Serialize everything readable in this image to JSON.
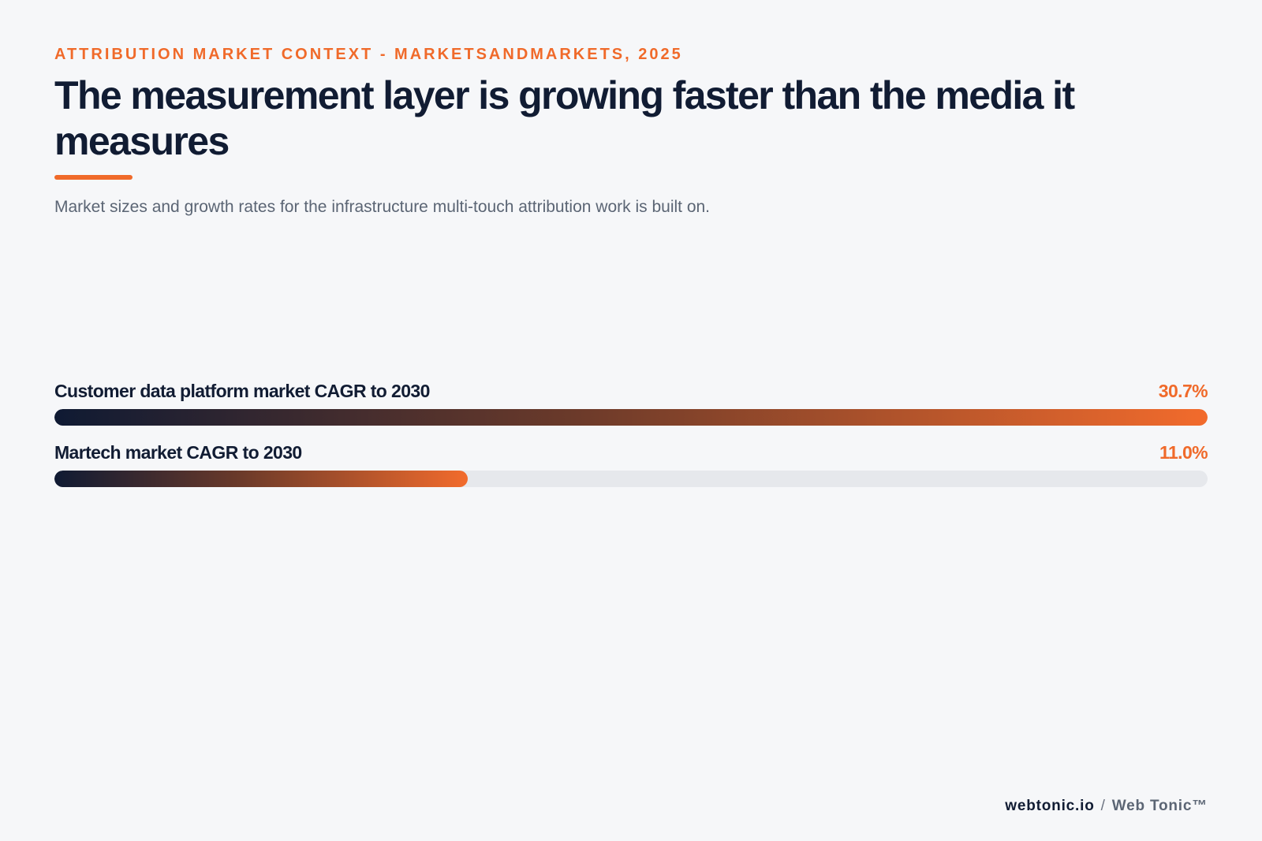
{
  "header": {
    "eyebrow": "ATTRIBUTION MARKET CONTEXT - MARKETSANDMARKETS, 2025",
    "title": "The measurement layer is growing faster than the media it measures",
    "subtitle": "Market sizes and growth rates for the infrastructure multi-touch attribution work is built on."
  },
  "colors": {
    "accent": "#f06a2a",
    "ink": "#111c33",
    "track": "#e6e8ec",
    "background": "#f6f7f9"
  },
  "chart_data": {
    "type": "bar",
    "orientation": "horizontal",
    "scale_max": 30.7,
    "categories": [
      "Customer data platform market CAGR to 2030",
      "Martech market CAGR to 2030"
    ],
    "values": [
      30.7,
      11.0
    ],
    "value_labels": [
      "30.7%",
      "11.0%"
    ],
    "unit": "%"
  },
  "footer": {
    "domain": "webtonic.io",
    "separator": "/",
    "brand": "Web Tonic™"
  }
}
